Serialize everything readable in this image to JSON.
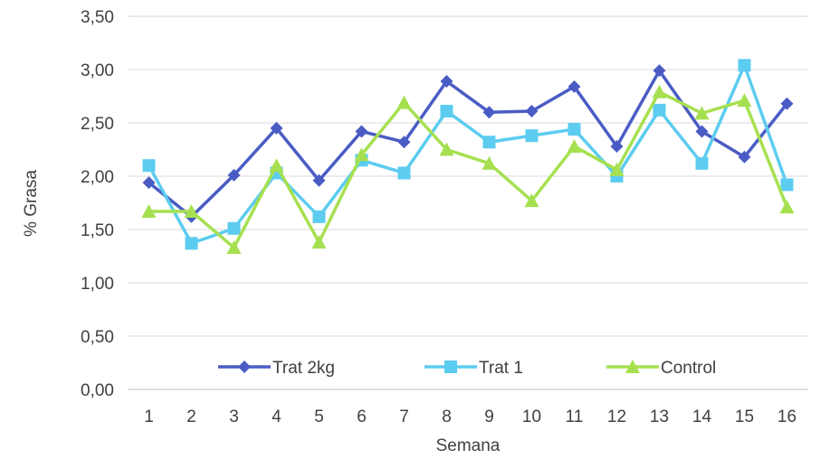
{
  "chart_data": {
    "type": "line",
    "title": "",
    "xlabel": "Semana",
    "ylabel": "% Grasa",
    "ylim": [
      0,
      3.5
    ],
    "yticks": [
      "0,00",
      "0,50",
      "1,00",
      "1,50",
      "2,00",
      "2,50",
      "3,00",
      "3,50"
    ],
    "categories": [
      "1",
      "2",
      "3",
      "4",
      "5",
      "6",
      "7",
      "8",
      "9",
      "10",
      "11",
      "12",
      "13",
      "14",
      "15",
      "16"
    ],
    "grid": true,
    "legend_position": "bottom-inside",
    "series": [
      {
        "name": "Trat 2kg",
        "color": "#4A5CC4",
        "marker": "diamond",
        "values": [
          1.94,
          1.62,
          2.01,
          2.45,
          1.96,
          2.42,
          2.32,
          2.89,
          2.6,
          2.61,
          2.84,
          2.28,
          2.99,
          2.42,
          2.18,
          2.68
        ]
      },
      {
        "name": "Trat 1",
        "color": "#5CCCF0",
        "marker": "square",
        "values": [
          2.1,
          1.37,
          1.51,
          2.03,
          1.62,
          2.15,
          2.03,
          2.61,
          2.32,
          2.38,
          2.44,
          2.0,
          2.62,
          2.12,
          3.04,
          1.92
        ]
      },
      {
        "name": "Control",
        "color": "#A6E050",
        "marker": "triangle",
        "values": [
          1.67,
          1.67,
          1.33,
          2.1,
          1.38,
          2.2,
          2.69,
          2.25,
          2.12,
          1.77,
          2.28,
          2.06,
          2.79,
          2.59,
          2.71,
          1.71
        ]
      }
    ]
  }
}
